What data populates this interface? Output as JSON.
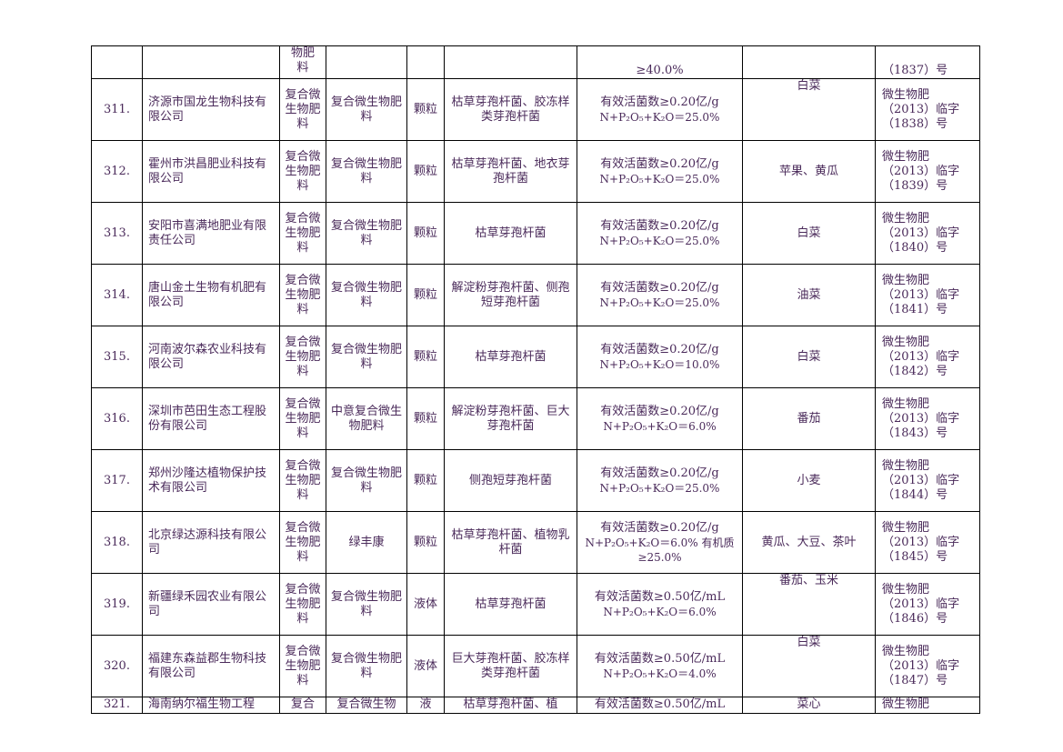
{
  "top_row": {
    "type_tail": "物肥\n料",
    "spec_tail": "≥40.0%",
    "reg_tail": "（1837）号"
  },
  "rows": [
    {
      "no": "311.",
      "company": "济源市国龙生物科技有限公司",
      "type": "复合微生物肥料",
      "name": "复合微生物肥料",
      "form": "颗粒",
      "strain": "枯草芽孢杆菌、胶冻样类芽孢杆菌",
      "spec1": "有效活菌数≥0.20亿/g",
      "spec2": "N+P₂O₅+K₂O＝25.0%",
      "crop": "白菜",
      "reg1": "微生物肥",
      "reg2": "（2013）临字",
      "reg3": "（1838）号"
    },
    {
      "no": "312.",
      "company": "霍州市洪昌肥业科技有限公司",
      "type": "复合微生物肥料",
      "name": "复合微生物肥料",
      "form": "颗粒",
      "strain": "枯草芽孢杆菌、地衣芽孢杆菌",
      "spec1": "有效活菌数≥0.20亿/g",
      "spec2": "N+P₂O₅+K₂O＝25.0%",
      "crop": "苹果、黄瓜",
      "reg1": "微生物肥",
      "reg2": "（2013）临字",
      "reg3": "（1839）号"
    },
    {
      "no": "313.",
      "company": "安阳市喜满地肥业有限责任公司",
      "type": "复合微生物肥料",
      "name": "复合微生物肥料",
      "form": "颗粒",
      "strain": "枯草芽孢杆菌",
      "spec1": "有效活菌数≥0.20亿/g",
      "spec2": "N+P₂O₅+K₂O＝25.0%",
      "crop": "白菜",
      "reg1": "微生物肥",
      "reg2": "（2013）临字",
      "reg3": "（1840）号"
    },
    {
      "no": "314.",
      "company": "唐山金土生物有机肥有限公司",
      "type": "复合微生物肥料",
      "name": "复合微生物肥料",
      "form": "颗粒",
      "strain": "解淀粉芽孢杆菌、侧孢短芽孢杆菌",
      "spec1": "有效活菌数≥0.20亿/g",
      "spec2": "N+P₂O₅+K₂O＝25.0%",
      "crop": "油菜",
      "reg1": "微生物肥",
      "reg2": "（2013）临字",
      "reg3": "（1841）号"
    },
    {
      "no": "315.",
      "company": "河南波尔森农业科技有限公司",
      "type": "复合微生物肥料",
      "name": "复合微生物肥料",
      "form": "颗粒",
      "strain": "枯草芽孢杆菌",
      "spec1": "有效活菌数≥0.20亿/g",
      "spec2": "N+P₂O₅+K₂O＝10.0%",
      "crop": "白菜",
      "reg1": "微生物肥",
      "reg2": "（2013）临字",
      "reg3": "（1842）号"
    },
    {
      "no": "316.",
      "company": "深圳市芭田生态工程股份有限公司",
      "type": "复合微生物肥料",
      "name": "中意复合微生物肥料",
      "form": "颗粒",
      "strain": "解淀粉芽孢杆菌、巨大芽孢杆菌",
      "spec1": "有效活菌数≥0.20亿/g",
      "spec2": "N+P₂O₅+K₂O＝6.0%",
      "crop": "番茄",
      "reg1": "微生物肥",
      "reg2": "（2013）临字",
      "reg3": "（1843）号"
    },
    {
      "no": "317.",
      "company": "郑州沙隆达植物保护技术有限公司",
      "type": "复合微生物肥料",
      "name": "复合微生物肥料",
      "form": "颗粒",
      "strain": "侧孢短芽孢杆菌",
      "spec1": "有效活菌数≥0.20亿/g",
      "spec2": "N+P₂O₅+K₂O＝25.0%",
      "crop": "小麦",
      "reg1": "微生物肥",
      "reg2": "（2013）临字",
      "reg3": "（1844）号"
    },
    {
      "no": "318.",
      "company": "北京绿达源科技有限公司",
      "type": "复合微生物肥料",
      "name": "绿丰康",
      "form": "颗粒",
      "strain": "枯草芽孢杆菌、植物乳杆菌",
      "spec1": "有效活菌数≥0.20亿/g",
      "spec2": "N+P₂O₅+K₂O＝6.0% 有机质≥25.0%",
      "crop": "黄瓜、大豆、茶叶",
      "reg1": "微生物肥",
      "reg2": "（2013）临字",
      "reg3": "（1845）号"
    },
    {
      "no": "319.",
      "company": "新疆绿禾园农业有限公司",
      "type": "复合微生物肥料",
      "name": "复合微生物肥料",
      "form": "液体",
      "strain": "枯草芽孢杆菌",
      "spec1": "有效活菌数≥0.50亿/mL",
      "spec2": "N+P₂O₅+K₂O＝6.0%",
      "crop": "番茄、玉米",
      "reg1": "微生物肥",
      "reg2": "（2013）临字",
      "reg3": "（1846）号"
    },
    {
      "no": "320.",
      "company": "福建东森益郡生物科技有限公司",
      "type": "复合微生物肥料",
      "name": "复合微生物肥料",
      "form": "液体",
      "strain": "巨大芽孢杆菌、胶冻样类芽孢杆菌",
      "spec1": "有效活菌数≥0.50亿/mL",
      "spec2": "N+P₂O₅+K₂O＝4.0%",
      "crop": "白菜",
      "reg1": "微生物肥",
      "reg2": "（2013）临字",
      "reg3": "（1847）号"
    }
  ],
  "bottom_row": {
    "no": "321.",
    "company": "海南纳尔福生物工程",
    "type": "复合",
    "name": "复合微生物",
    "form": "液",
    "strain": "枯草芽孢杆菌、植",
    "spec1": "有效活菌数≥0.50亿/mL",
    "crop": "菜心",
    "reg1": "微生物肥"
  }
}
